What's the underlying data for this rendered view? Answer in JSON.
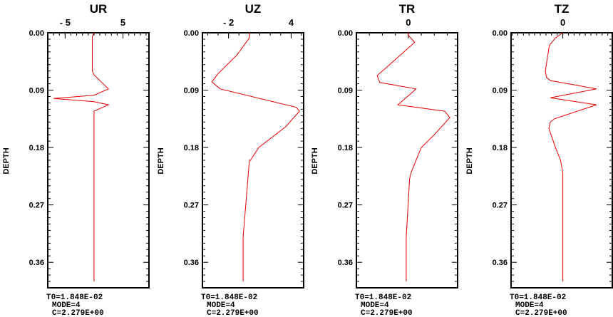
{
  "chart_data": [
    {
      "type": "line",
      "title": "UR",
      "ylabel": "DEPTH",
      "xlim": [
        -8.0,
        9.5
      ],
      "xticks": [
        {
          "v": -5,
          "label": "- 5"
        },
        {
          "v": 5,
          "label": "5"
        }
      ],
      "ylim": [
        0,
        0.4
      ],
      "yticks": [
        "0.00",
        "0.09",
        "0.18",
        "0.27",
        "0.36"
      ],
      "color": "#e60000",
      "series": [
        {
          "x": [
            0,
            -0.3,
            -0.3,
            0,
            2.5,
            0,
            -7.0,
            0,
            2.5,
            0,
            0,
            0,
            0
          ],
          "y": [
            0.0,
            0.006,
            0.06,
            0.066,
            0.088,
            0.098,
            0.103,
            0.108,
            0.113,
            0.123,
            0.146,
            0.2,
            0.39
          ]
        }
      ],
      "info": {
        "t0": "T0=1.848E-02",
        "mode": "MODE=4",
        "c": "C=2.279E+00"
      }
    },
    {
      "type": "line",
      "title": "UZ",
      "ylabel": "DEPTH",
      "xlim": [
        -4.5,
        5.2
      ],
      "xticks": [
        {
          "v": -2,
          "label": "- 2"
        },
        {
          "v": 4,
          "label": "4"
        }
      ],
      "ylim": [
        0,
        0.4
      ],
      "yticks": [
        "0.00",
        "0.09",
        "0.18",
        "0.27",
        "0.36"
      ],
      "color": "#e60000",
      "series": [
        {
          "x": [
            0,
            0,
            -1.2,
            -3.0,
            -3.6,
            -2.8,
            4.5,
            4.8,
            3.5,
            0.9,
            0.1,
            0,
            -0.5,
            -0.6,
            -0.6
          ],
          "y": [
            0.0,
            0.008,
            0.035,
            0.064,
            0.077,
            0.088,
            0.117,
            0.123,
            0.147,
            0.18,
            0.2,
            0.2,
            0.3,
            0.32,
            0.39
          ]
        }
      ],
      "info": {
        "t0": "T0=1.848E-02",
        "mode": "MODE=4",
        "c": "C=2.279E+00"
      }
    },
    {
      "type": "line",
      "title": "TR",
      "ylabel": "DEPTH",
      "xlim": [
        -20,
        19
      ],
      "xticks": [
        {
          "v": 0,
          "label": "0"
        }
      ],
      "ylim": [
        0,
        0.4
      ],
      "yticks": [
        "0.00",
        "0.09",
        "0.18",
        "0.27",
        "0.36"
      ],
      "color": "#e60000",
      "series": [
        {
          "x": [
            0,
            0,
            2.5,
            -10.0,
            -12.0,
            -11.0,
            3.0,
            2.5,
            -4.0,
            14.0,
            16.0,
            10.0,
            5.0,
            3.0,
            1.0,
            0.5,
            -0.5,
            -0.8,
            -0.8
          ],
          "y": [
            0.0,
            0.004,
            0.015,
            0.06,
            0.067,
            0.078,
            0.088,
            0.09,
            0.113,
            0.123,
            0.133,
            0.16,
            0.18,
            0.2,
            0.22,
            0.23,
            0.3,
            0.32,
            0.39
          ]
        }
      ],
      "info": {
        "t0": "T0=1.848E-02",
        "mode": "MODE=4",
        "c": "C=2.279E+00"
      }
    },
    {
      "type": "line",
      "title": "TZ",
      "ylabel": "DEPTH",
      "xlim": [
        -9.2,
        8.8
      ],
      "xticks": [
        {
          "v": 0,
          "label": "0"
        }
      ],
      "ylim": [
        0,
        0.4
      ],
      "yticks": [
        "0.00",
        "0.09",
        "0.18",
        "0.27",
        "0.36"
      ],
      "color": "#e60000",
      "series": [
        {
          "x": [
            0,
            -1.3,
            -2.4,
            -3.1,
            -2.9,
            -2.2,
            6.0,
            -2.2,
            6.0,
            -1.5,
            -2.2,
            -2.5,
            -1.3,
            -0.4,
            0,
            0,
            0
          ],
          "y": [
            0.0,
            0.008,
            0.02,
            0.06,
            0.07,
            0.075,
            0.088,
            0.102,
            0.113,
            0.135,
            0.14,
            0.15,
            0.18,
            0.2,
            0.22,
            0.3,
            0.39
          ]
        }
      ],
      "info": {
        "t0": "T0=1.848E-02",
        "mode": "MODE=4",
        "c": "C=2.279E+00"
      }
    }
  ]
}
